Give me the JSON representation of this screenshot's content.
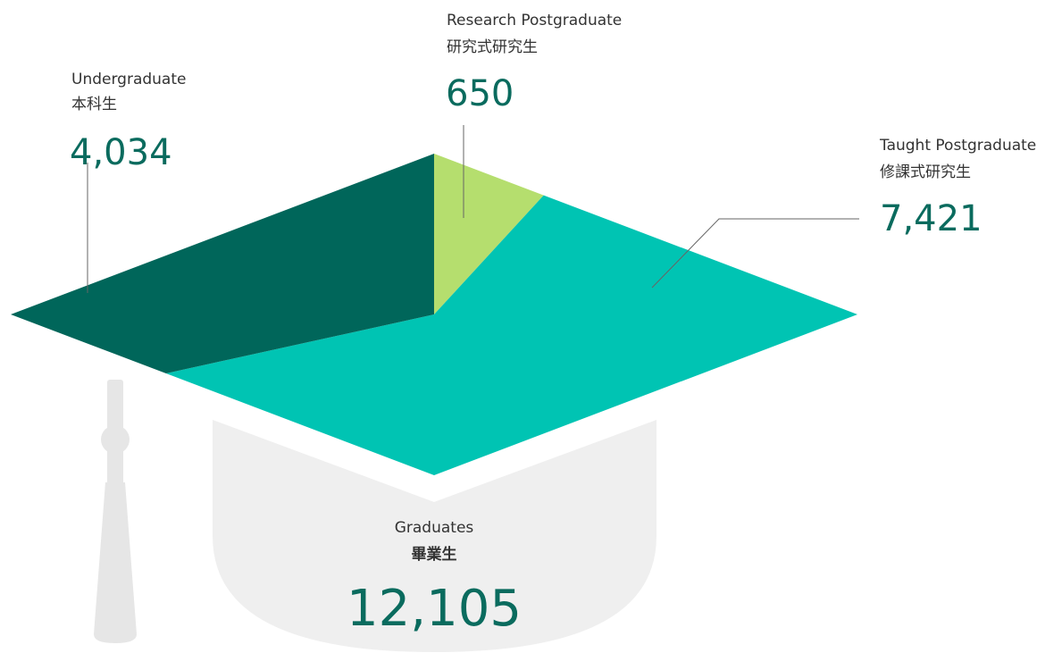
{
  "chart_data": {
    "type": "pie",
    "series": [
      {
        "name": "Research Postgraduate",
        "name_zh": "研究式研究生",
        "value": 650,
        "value_label": "650",
        "color": "#b5de6e"
      },
      {
        "name": "Taught Postgraduate",
        "name_zh": "修課式研究生",
        "value": 7421,
        "value_label": "7,421",
        "color": "#00c4b3"
      },
      {
        "name": "Undergraduate",
        "name_zh": "本科生",
        "value": 4034,
        "value_label": "4,034",
        "color": "#00665a"
      }
    ],
    "total_name": "Graduates",
    "total_name_zh": "畢業生",
    "total": 12105,
    "total_label": "12,105"
  }
}
